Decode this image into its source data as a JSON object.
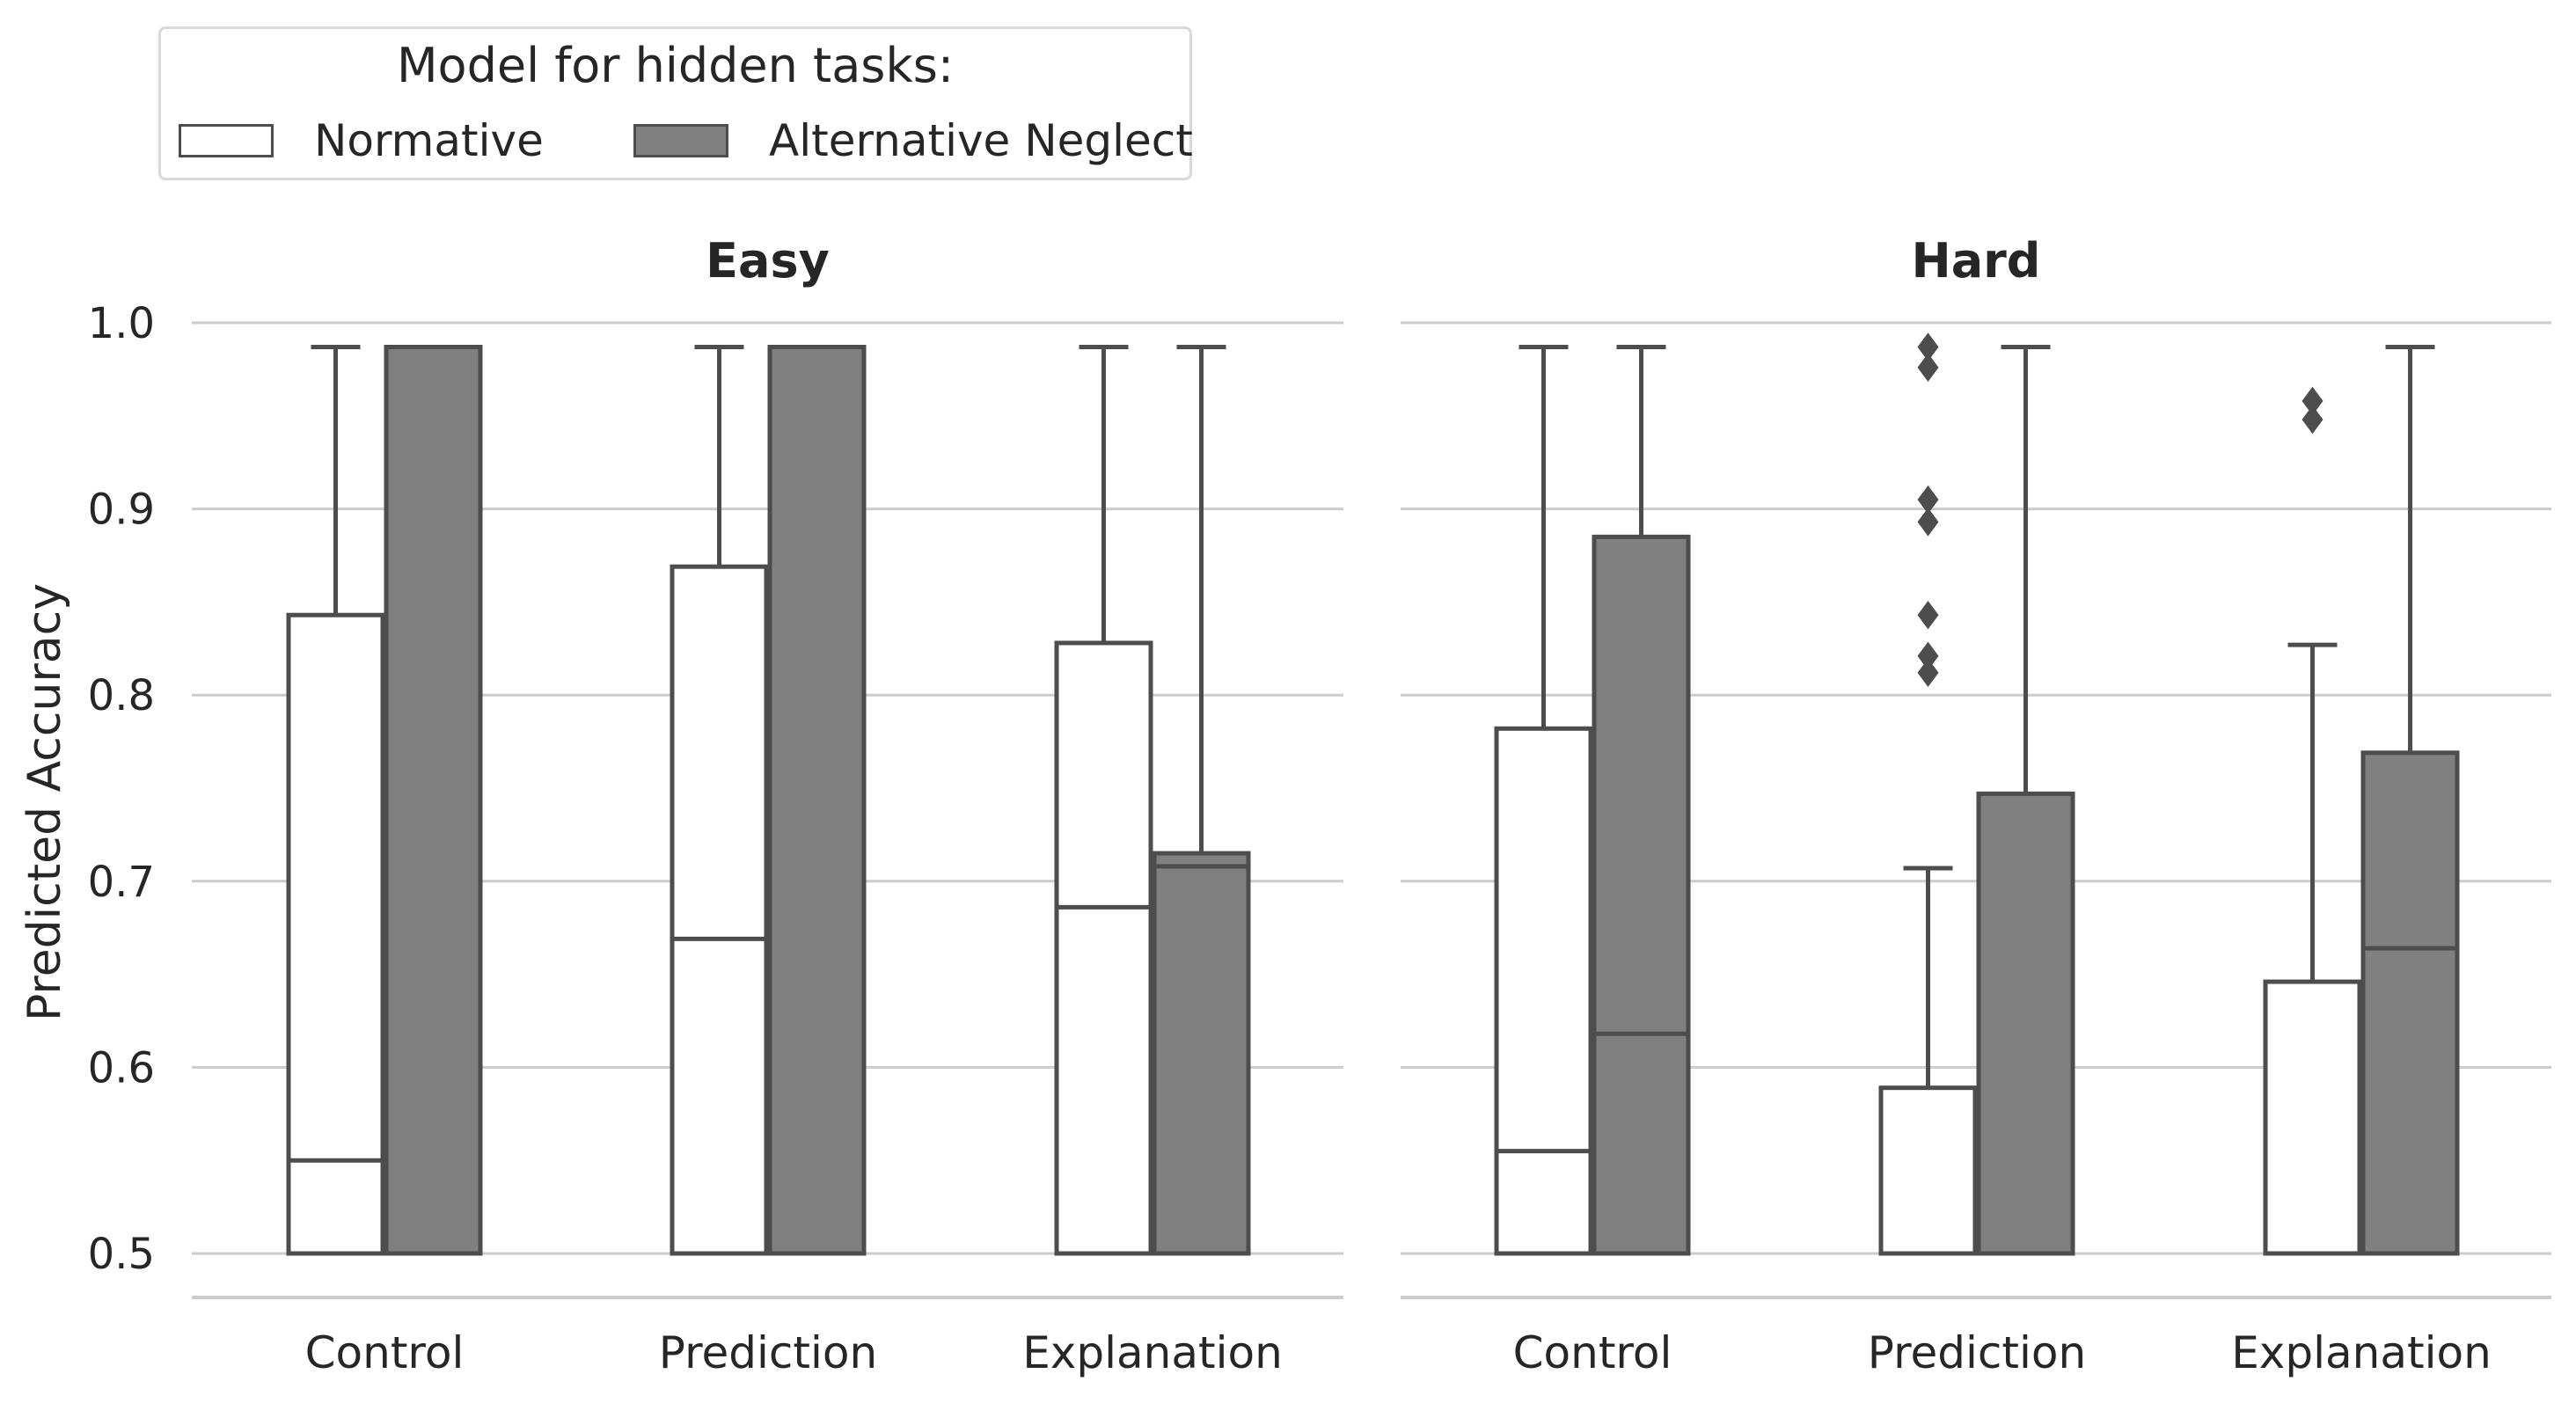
{
  "chart_data": {
    "type": "box",
    "ylabel": "Predicted Accuracy",
    "ylim": [
      0.5,
      1.0
    ],
    "yticks": [
      "0.5",
      "0.6",
      "0.7",
      "0.8",
      "0.9",
      "1.0"
    ],
    "grid": true,
    "categories": [
      "Control",
      "Prediction",
      "Explanation"
    ],
    "legend": {
      "title": "Model for hidden tasks:",
      "placement": "top-left",
      "entries": [
        {
          "label": "Normative",
          "color": "#ffffff"
        },
        {
          "label": "Alternative Neglect",
          "color": "#808080"
        }
      ]
    },
    "panels": [
      {
        "title": "Easy",
        "groups": [
          {
            "category": "Control",
            "boxes": [
              {
                "series": "Normative",
                "whislo": 0.5,
                "q1": 0.5,
                "median": 0.55,
                "q3": 0.843,
                "whishi": 0.987,
                "fliers": []
              },
              {
                "series": "Alternative Neglect",
                "whislo": 0.5,
                "q1": 0.5,
                "median": 0.987,
                "q3": 0.987,
                "whishi": 0.987,
                "fliers": []
              }
            ]
          },
          {
            "category": "Prediction",
            "boxes": [
              {
                "series": "Normative",
                "whislo": 0.5,
                "q1": 0.5,
                "median": 0.669,
                "q3": 0.869,
                "whishi": 0.987,
                "fliers": []
              },
              {
                "series": "Alternative Neglect",
                "whislo": 0.5,
                "q1": 0.5,
                "median": 0.987,
                "q3": 0.987,
                "whishi": 0.987,
                "fliers": []
              }
            ]
          },
          {
            "category": "Explanation",
            "boxes": [
              {
                "series": "Normative",
                "whislo": 0.5,
                "q1": 0.5,
                "median": 0.686,
                "q3": 0.828,
                "whishi": 0.987,
                "fliers": []
              },
              {
                "series": "Alternative Neglect",
                "whislo": 0.5,
                "q1": 0.5,
                "median": 0.708,
                "q3": 0.715,
                "whishi": 0.987,
                "fliers": []
              }
            ]
          }
        ]
      },
      {
        "title": "Hard",
        "groups": [
          {
            "category": "Control",
            "boxes": [
              {
                "series": "Normative",
                "whislo": 0.5,
                "q1": 0.5,
                "median": 0.555,
                "q3": 0.782,
                "whishi": 0.987,
                "fliers": []
              },
              {
                "series": "Alternative Neglect",
                "whislo": 0.5,
                "q1": 0.5,
                "median": 0.618,
                "q3": 0.885,
                "whishi": 0.987,
                "fliers": []
              }
            ]
          },
          {
            "category": "Prediction",
            "boxes": [
              {
                "series": "Normative",
                "whislo": 0.5,
                "q1": 0.5,
                "median": 0.5,
                "q3": 0.589,
                "whishi": 0.707,
                "fliers": [
                  0.987,
                  0.976,
                  0.905,
                  0.893,
                  0.843,
                  0.821,
                  0.812
                ]
              },
              {
                "series": "Alternative Neglect",
                "whislo": 0.5,
                "q1": 0.5,
                "median": 0.5,
                "q3": 0.747,
                "whishi": 0.987,
                "fliers": []
              }
            ]
          },
          {
            "category": "Explanation",
            "boxes": [
              {
                "series": "Normative",
                "whislo": 0.5,
                "q1": 0.5,
                "median": 0.5,
                "q3": 0.646,
                "whishi": 0.827,
                "fliers": [
                  0.958,
                  0.948
                ]
              },
              {
                "series": "Alternative Neglect",
                "whislo": 0.5,
                "q1": 0.5,
                "median": 0.664,
                "q3": 0.769,
                "whishi": 0.987,
                "fliers": []
              }
            ]
          }
        ]
      }
    ]
  }
}
